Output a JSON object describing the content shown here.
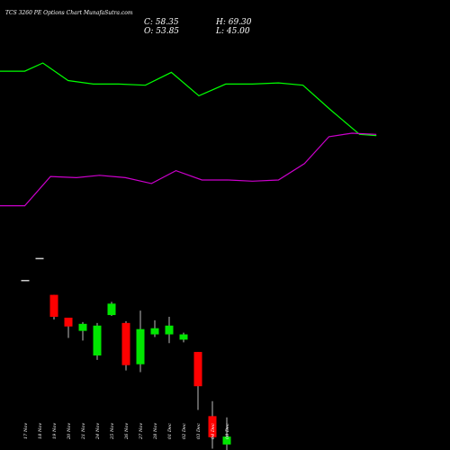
{
  "header": {
    "title": "TCS 3260  PE Options  Chart MunafaSutra.com",
    "close_label": "C: 58.35",
    "open_label": "O: 53.85",
    "high_label": "H: 69.30",
    "low_label": "L: 45.00"
  },
  "chart_data": {
    "type": "candlestick",
    "title": "TCS 3260  PE Options  Chart MunafaSutra.com",
    "xlabel": "",
    "ylabel": "",
    "grid": false,
    "colors": {
      "up": "#00e600",
      "down": "#ff0000",
      "doji": "#cccccc",
      "line_green": "#00ff00",
      "line_magenta": "#cc00cc",
      "background": "#000000"
    },
    "categories": [
      "17 Nov",
      "18 Nov",
      "19 Nov",
      "20 Nov",
      "21 Nov",
      "24 Nov",
      "25 Nov",
      "26 Nov",
      "27 Nov",
      "28 Nov",
      "01 Dec",
      "02 Dec",
      "03 Dec",
      "04 Dec",
      "08 Dec"
    ],
    "ylim": [
      20,
      190
    ],
    "candles": [
      {
        "date": "17 Nov",
        "open": 147.5,
        "high": 147.5,
        "low": 147.5,
        "close": 147.5
      },
      {
        "date": "18 Nov",
        "open": 160.0,
        "high": 160.0,
        "low": 160.0,
        "close": 160.0
      },
      {
        "date": "19 Nov",
        "open": 139.0,
        "high": 139.0,
        "low": 125.0,
        "close": 126.5
      },
      {
        "date": "20 Nov",
        "open": 126.0,
        "high": 126.0,
        "low": 114.5,
        "close": 121.0
      },
      {
        "date": "21 Nov",
        "open": 118.5,
        "high": 123.5,
        "low": 113.0,
        "close": 122.5
      },
      {
        "date": "24 Nov",
        "open": 104.5,
        "high": 123.0,
        "low": 102.0,
        "close": 121.5
      },
      {
        "date": "25 Nov",
        "open": 127.5,
        "high": 135.0,
        "low": 127.0,
        "close": 134.0
      },
      {
        "date": "26 Nov",
        "open": 123.0,
        "high": 124.0,
        "low": 96.0,
        "close": 99.0
      },
      {
        "date": "27 Nov",
        "open": 99.5,
        "high": 130.0,
        "low": 95.0,
        "close": 119.5
      },
      {
        "date": "28 Nov",
        "open": 116.5,
        "high": 124.5,
        "low": 115.0,
        "close": 120.0
      },
      {
        "date": "01 Dec",
        "open": 116.5,
        "high": 126.5,
        "low": 111.5,
        "close": 121.5
      },
      {
        "date": "02 Dec",
        "open": 113.5,
        "high": 117.5,
        "low": 112.0,
        "close": 116.5
      },
      {
        "date": "03 Dec",
        "open": 106.5,
        "high": 106.5,
        "low": 73.5,
        "close": 87.0
      },
      {
        "date": "04 Dec",
        "open": 70.0,
        "high": 78.5,
        "low": 51.5,
        "close": 58.0
      },
      {
        "date": "08 Dec",
        "open": 53.85,
        "high": 69.3,
        "low": 45.0,
        "close": 58.35
      }
    ],
    "line_series": [
      {
        "color": "#00ff00",
        "x": [
          0,
          1.62,
          2.8,
          4.45,
          6.1,
          7.75,
          9.5,
          11.2,
          13,
          14.75,
          16.5,
          18.2,
          19.8,
          21.6,
          23.5,
          24.6
        ],
        "values": [
          0.7,
          0.7,
          0.0,
          1.5,
          1.8,
          1.8,
          1.9,
          0.8,
          2.8,
          1.8,
          1.8,
          1.7,
          1.9,
          4.0,
          6.1,
          6.2
        ]
      },
      {
        "color": "#cc00cc",
        "x": [
          0,
          1.62,
          3.3,
          5.0,
          6.5,
          8.2,
          9.9,
          11.5,
          13.2,
          14.9,
          16.5,
          18.2,
          19.9,
          21.5,
          23.0,
          24.6
        ],
        "values": [
          12.2,
          12.2,
          9.7,
          9.8,
          9.6,
          9.8,
          10.3,
          9.2,
          10.0,
          10.0,
          10.1,
          10.0,
          8.6,
          6.3,
          6.0,
          6.1
        ]
      }
    ]
  }
}
